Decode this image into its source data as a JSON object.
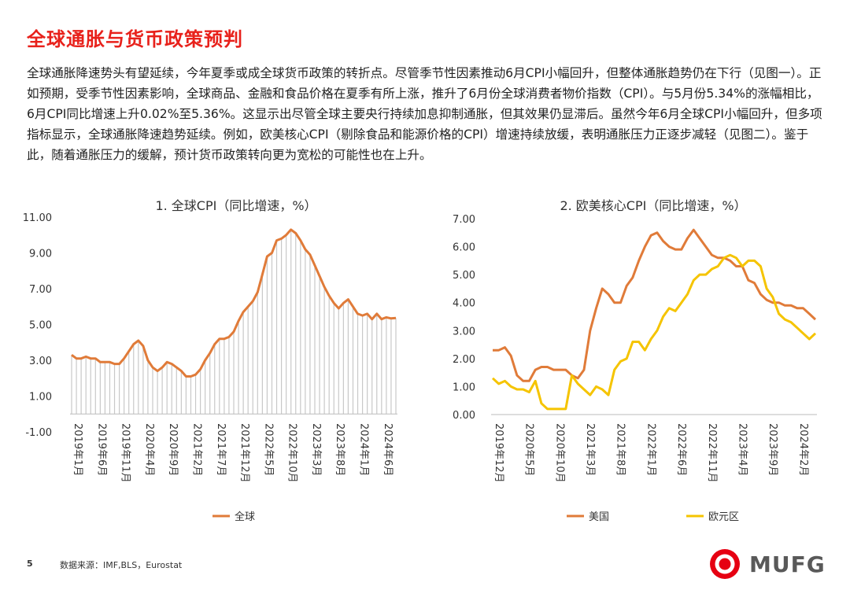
{
  "page": {
    "title": "全球通胀与货币政策预判",
    "intro": "全球通胀降速势头有望延续，今年夏季或成全球货币政策的转折点。尽管季节性因素推动6月CPI小幅回升，但整体通胀趋势仍在下行（见图一）。正如预期，受季节性因素影响，全球商品、金融和食品价格在夏季有所上涨，推升了6月份全球消费者物价指数（CPI）。与5月份5.34%的涨幅相比，6月CPI同比增速上升0.02%至5.36%。这显示出尽管全球主要央行持续加息抑制通胀，但其效果仍显滞后。虽然今年6月全球CPI小幅回升，但多项指标显示，全球通胀降速趋势延续。例如，欧美核心CPI（剔除食品和能源价格的CPI）增速持续放缓，表明通胀压力正逐步减轻（见图二）。鉴于此，随着通胀压力的缓解，预计货币政策转向更为宽松的可能性也在上升。",
    "page_number": "5",
    "source": "数据来源：IMF,BLS，Eurostat",
    "logo_text": "MUFG"
  },
  "colors": {
    "accent": "#e8211b",
    "orange": "#e07b39",
    "yellow": "#f5c400",
    "gray_bar": "#c8c8c8",
    "logo_red": "#e60012"
  },
  "chart_data": [
    {
      "type": "line",
      "title": "1. 全球CPI（同比增速，%）",
      "ylim": [
        -1,
        11
      ],
      "yticks": [
        "-1.00",
        "1.00",
        "3.00",
        "5.00",
        "7.00",
        "9.00",
        "11.00"
      ],
      "xtick_labels": [
        "2019年1月",
        "2019年6月",
        "2019年11月",
        "2020年4月",
        "2020年9月",
        "2021年2月",
        "2021年7月",
        "2021年12月",
        "2022年5月",
        "2022年10月",
        "2023年3月",
        "2023年8月",
        "2024年1月",
        "2024年6月"
      ],
      "legend": "全球",
      "series": [
        {
          "name": "全球",
          "values": [
            3.3,
            3.1,
            3.1,
            3.2,
            3.1,
            3.1,
            2.9,
            2.9,
            2.9,
            2.8,
            2.8,
            3.1,
            3.5,
            3.9,
            4.1,
            3.8,
            3.0,
            2.6,
            2.4,
            2.6,
            2.9,
            2.8,
            2.6,
            2.4,
            2.1,
            2.1,
            2.2,
            2.5,
            3.0,
            3.4,
            3.9,
            4.2,
            4.2,
            4.3,
            4.6,
            5.2,
            5.7,
            6.0,
            6.3,
            6.8,
            7.8,
            8.8,
            9.0,
            9.7,
            9.8,
            10.0,
            10.3,
            10.1,
            9.7,
            9.2,
            8.9,
            8.3,
            7.7,
            7.1,
            6.6,
            6.2,
            5.9,
            6.2,
            6.4,
            6.0,
            5.6,
            5.5,
            5.6,
            5.3,
            5.6,
            5.3,
            5.4,
            5.34,
            5.36
          ]
        }
      ]
    },
    {
      "type": "line",
      "title": "2. 欧美核心CPI（同比增速，%）",
      "ylim": [
        0,
        7
      ],
      "yticks": [
        "0.00",
        "1.00",
        "2.00",
        "3.00",
        "4.00",
        "5.00",
        "6.00",
        "7.00"
      ],
      "xtick_labels": [
        "2019年12月",
        "2020年5月",
        "2020年10月",
        "2021年3月",
        "2021年8月",
        "2022年1月",
        "2022年6月",
        "2022年11月",
        "2023年4月",
        "2023年9月",
        "2024年2月"
      ],
      "series": [
        {
          "name": "美国",
          "values": [
            2.3,
            2.3,
            2.4,
            2.1,
            1.4,
            1.2,
            1.2,
            1.6,
            1.7,
            1.7,
            1.6,
            1.6,
            1.6,
            1.4,
            1.3,
            1.6,
            3.0,
            3.8,
            4.5,
            4.3,
            4.0,
            4.0,
            4.6,
            4.9,
            5.5,
            6.0,
            6.4,
            6.5,
            6.2,
            6.0,
            5.9,
            5.9,
            6.3,
            6.6,
            6.3,
            6.0,
            5.7,
            5.6,
            5.6,
            5.5,
            5.3,
            5.3,
            4.8,
            4.7,
            4.3,
            4.1,
            4.0,
            4.0,
            3.9,
            3.9,
            3.8,
            3.8,
            3.6,
            3.4
          ]
        },
        {
          "name": "欧元区",
          "values": [
            1.3,
            1.1,
            1.2,
            1.0,
            0.9,
            0.9,
            0.8,
            1.2,
            0.4,
            0.2,
            0.2,
            0.2,
            0.2,
            1.4,
            1.1,
            0.9,
            0.7,
            1.0,
            0.9,
            0.7,
            1.6,
            1.9,
            2.0,
            2.6,
            2.6,
            2.3,
            2.7,
            3.0,
            3.5,
            3.8,
            3.7,
            4.0,
            4.3,
            4.8,
            5.0,
            5.0,
            5.2,
            5.3,
            5.6,
            5.7,
            5.6,
            5.3,
            5.5,
            5.5,
            5.3,
            4.5,
            4.2,
            3.6,
            3.4,
            3.3,
            3.1,
            2.9,
            2.7,
            2.9
          ]
        }
      ]
    }
  ]
}
